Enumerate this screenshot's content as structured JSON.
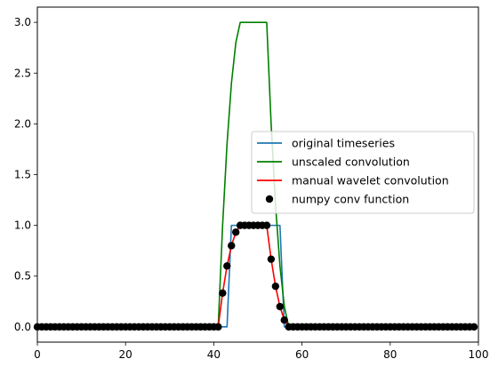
{
  "chart_data": {
    "type": "line",
    "title": "",
    "xlabel": "",
    "ylabel": "",
    "xlim": [
      0,
      100
    ],
    "ylim": [
      -0.15,
      3.15
    ],
    "x_ticks": [
      0,
      20,
      40,
      60,
      80,
      100
    ],
    "y_ticks": [
      0.0,
      0.5,
      1.0,
      1.5,
      2.0,
      2.5,
      3.0
    ],
    "legend_position": "center-right",
    "grid": false,
    "series": [
      {
        "name": "original timeseries",
        "kind": "line",
        "color": "#1f77b4",
        "x": [
          0,
          43,
          44,
          55,
          56,
          99
        ],
        "y": [
          0,
          0,
          1,
          1,
          0,
          0
        ]
      },
      {
        "name": "unscaled convolution",
        "kind": "line",
        "color": "#008000",
        "x": [
          0,
          41,
          42,
          43,
          44,
          45,
          46,
          52,
          53,
          54,
          55,
          56,
          57,
          99
        ],
        "y": [
          0,
          0,
          1.0,
          1.8,
          2.4,
          2.8,
          3.0,
          3.0,
          2.0,
          1.2,
          0.6,
          0.2,
          0,
          0
        ]
      },
      {
        "name": "manual wavelet convolution",
        "kind": "line",
        "color": "#ff0000",
        "x": [
          0,
          41,
          42,
          43,
          44,
          45,
          46,
          52,
          53,
          54,
          55,
          56,
          57,
          99
        ],
        "y": [
          0,
          0,
          0.333,
          0.6,
          0.8,
          0.933,
          1.0,
          1.0,
          0.667,
          0.4,
          0.2,
          0.067,
          0,
          0
        ]
      },
      {
        "name": "numpy conv function",
        "kind": "scatter",
        "color": "#000000",
        "x": [
          0,
          1,
          2,
          3,
          4,
          5,
          6,
          7,
          8,
          9,
          10,
          11,
          12,
          13,
          14,
          15,
          16,
          17,
          18,
          19,
          20,
          21,
          22,
          23,
          24,
          25,
          26,
          27,
          28,
          29,
          30,
          31,
          32,
          33,
          34,
          35,
          36,
          37,
          38,
          39,
          40,
          41,
          42,
          43,
          44,
          45,
          46,
          47,
          48,
          49,
          50,
          51,
          52,
          53,
          54,
          55,
          56,
          57,
          58,
          59,
          60,
          61,
          62,
          63,
          64,
          65,
          66,
          67,
          68,
          69,
          70,
          71,
          72,
          73,
          74,
          75,
          76,
          77,
          78,
          79,
          80,
          81,
          82,
          83,
          84,
          85,
          86,
          87,
          88,
          89,
          90,
          91,
          92,
          93,
          94,
          95,
          96,
          97,
          98,
          99
        ],
        "y": [
          0,
          0,
          0,
          0,
          0,
          0,
          0,
          0,
          0,
          0,
          0,
          0,
          0,
          0,
          0,
          0,
          0,
          0,
          0,
          0,
          0,
          0,
          0,
          0,
          0,
          0,
          0,
          0,
          0,
          0,
          0,
          0,
          0,
          0,
          0,
          0,
          0,
          0,
          0,
          0,
          0,
          0,
          0.333,
          0.6,
          0.8,
          0.933,
          1.0,
          1.0,
          1.0,
          1.0,
          1.0,
          1.0,
          1.0,
          0.667,
          0.4,
          0.2,
          0.067,
          0,
          0,
          0,
          0,
          0,
          0,
          0,
          0,
          0,
          0,
          0,
          0,
          0,
          0,
          0,
          0,
          0,
          0,
          0,
          0,
          0,
          0,
          0,
          0,
          0,
          0,
          0,
          0,
          0,
          0,
          0,
          0,
          0,
          0,
          0,
          0,
          0,
          0,
          0,
          0,
          0,
          0,
          0
        ]
      }
    ]
  }
}
